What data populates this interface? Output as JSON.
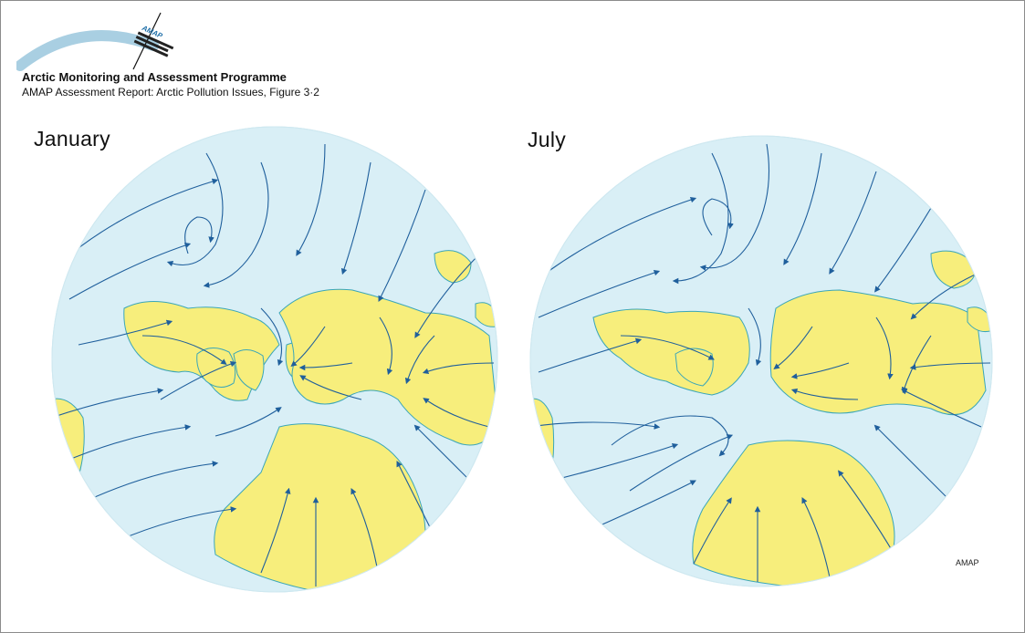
{
  "header": {
    "logo_text": "AMAP",
    "organization": "Arctic Monitoring and Assessment Programme",
    "subtitle": "AMAP Assessment Report: Arctic Pollution Issues, Figure 3·2"
  },
  "maps": [
    {
      "id": "january",
      "label": "January",
      "icon": "streamline-map-icon"
    },
    {
      "id": "july",
      "label": "July",
      "icon": "streamline-map-icon"
    }
  ],
  "credit": "AMAP",
  "colors": {
    "ocean": "#d9eff6",
    "land": "#f7ee7c",
    "coastline": "#3aa6b8",
    "flow_lines": "#1f5f9c",
    "logo_arc": "#a9cfe2"
  }
}
